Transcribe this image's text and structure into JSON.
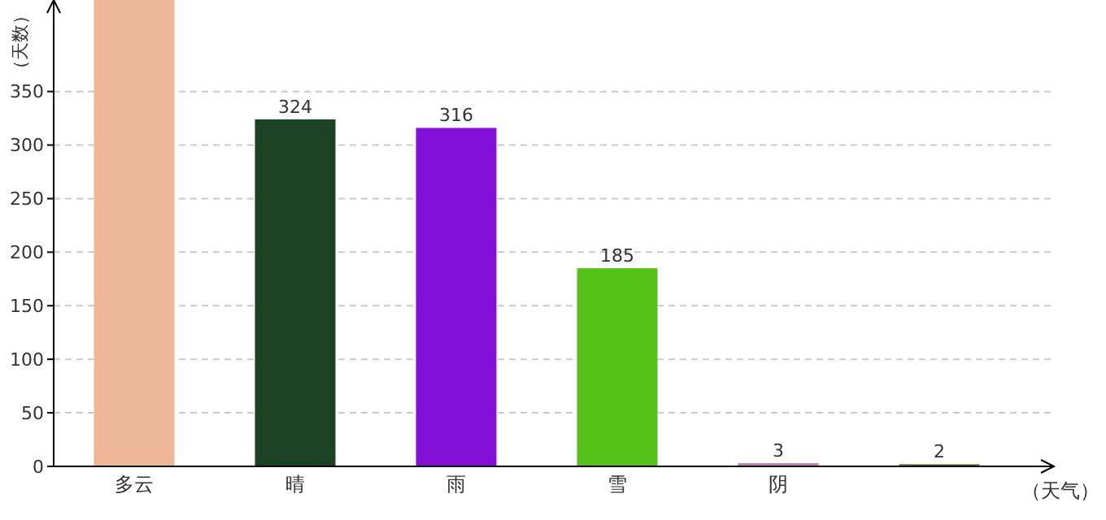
{
  "chart_data": {
    "type": "bar",
    "xlabel": "（天气）",
    "ylabel": "（天数）",
    "categories": [
      "多云",
      "晴",
      "雨",
      "雪",
      "阴",
      null
    ],
    "values": [
      440,
      324,
      316,
      185,
      3,
      2
    ],
    "colors": [
      "#eeb898",
      "#1b4223",
      "#8410d8",
      "#55c017",
      "#c67eb5",
      "#7b6a26"
    ],
    "value_labels": [
      null,
      "324",
      "316",
      "185",
      "3",
      "2"
    ],
    "ylim": [
      0,
      440
    ],
    "yticks": [
      0,
      50,
      100,
      150,
      200,
      250,
      300,
      350
    ],
    "grid": "y"
  }
}
